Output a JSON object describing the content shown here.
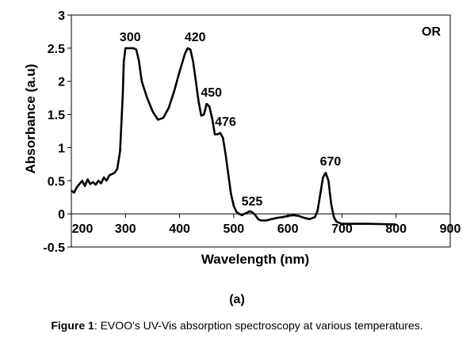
{
  "chart_data": {
    "type": "line",
    "xlabel": "Wavelength (nm)",
    "ylabel": "Absorbance (a.u)",
    "xlim": [
      200,
      900
    ],
    "ylim": [
      -0.5,
      3
    ],
    "x_ticks": [
      "200",
      "300",
      "400",
      "500",
      "600",
      "700",
      "800",
      "900"
    ],
    "y_ticks": [
      "-0.5",
      "0",
      "0.5",
      "1",
      "1.5",
      "2",
      "2.5",
      "3"
    ],
    "panel_label": "OR",
    "grid": false,
    "series": [
      {
        "color": "#000000",
        "x": [
          200,
          205,
          210,
          215,
          220,
          225,
          230,
          235,
          240,
          245,
          250,
          255,
          260,
          265,
          270,
          275,
          280,
          285,
          290,
          295,
          297,
          300,
          305,
          310,
          315,
          320,
          325,
          330,
          340,
          350,
          360,
          370,
          380,
          390,
          400,
          410,
          415,
          420,
          425,
          430,
          435,
          440,
          445,
          450,
          455,
          460,
          465,
          470,
          475,
          480,
          485,
          490,
          495,
          500,
          505,
          510,
          515,
          520,
          525,
          530,
          535,
          540,
          545,
          550,
          560,
          570,
          580,
          590,
          600,
          610,
          620,
          630,
          640,
          650,
          655,
          660,
          665,
          670,
          675,
          680,
          685,
          690,
          700,
          720,
          750,
          800
        ],
        "y": [
          0.35,
          0.32,
          0.4,
          0.45,
          0.5,
          0.42,
          0.52,
          0.45,
          0.48,
          0.44,
          0.5,
          0.46,
          0.55,
          0.5,
          0.58,
          0.6,
          0.62,
          0.68,
          0.95,
          1.8,
          2.3,
          2.5,
          2.5,
          2.5,
          2.5,
          2.48,
          2.3,
          2.0,
          1.75,
          1.55,
          1.42,
          1.45,
          1.6,
          1.85,
          2.15,
          2.42,
          2.5,
          2.48,
          2.3,
          2.0,
          1.7,
          1.48,
          1.5,
          1.66,
          1.62,
          1.45,
          1.2,
          1.2,
          1.22,
          1.15,
          0.9,
          0.6,
          0.3,
          0.12,
          0.03,
          0.0,
          -0.02,
          0.0,
          0.02,
          0.04,
          0.02,
          -0.02,
          -0.08,
          -0.1,
          -0.1,
          -0.08,
          -0.06,
          -0.05,
          -0.03,
          -0.02,
          -0.03,
          -0.06,
          -0.08,
          -0.05,
          0.05,
          0.3,
          0.55,
          0.62,
          0.5,
          0.15,
          -0.05,
          -0.12,
          -0.15,
          -0.15,
          -0.15,
          -0.16
        ]
      }
    ],
    "annotations": [
      {
        "text": "300",
        "x": 300,
        "y": 2.5
      },
      {
        "text": "420",
        "x": 420,
        "y": 2.5
      },
      {
        "text": "450",
        "x": 450,
        "y": 1.66
      },
      {
        "text": "476",
        "x": 476,
        "y": 1.22
      },
      {
        "text": "525",
        "x": 525,
        "y": 0.02
      },
      {
        "text": "670",
        "x": 670,
        "y": 0.62
      }
    ]
  },
  "subfigure_label": "(a)",
  "caption": {
    "label": "Figure 1",
    "text": ": EVOO's UV-Vis absorption spectroscopy at various temperatures."
  }
}
